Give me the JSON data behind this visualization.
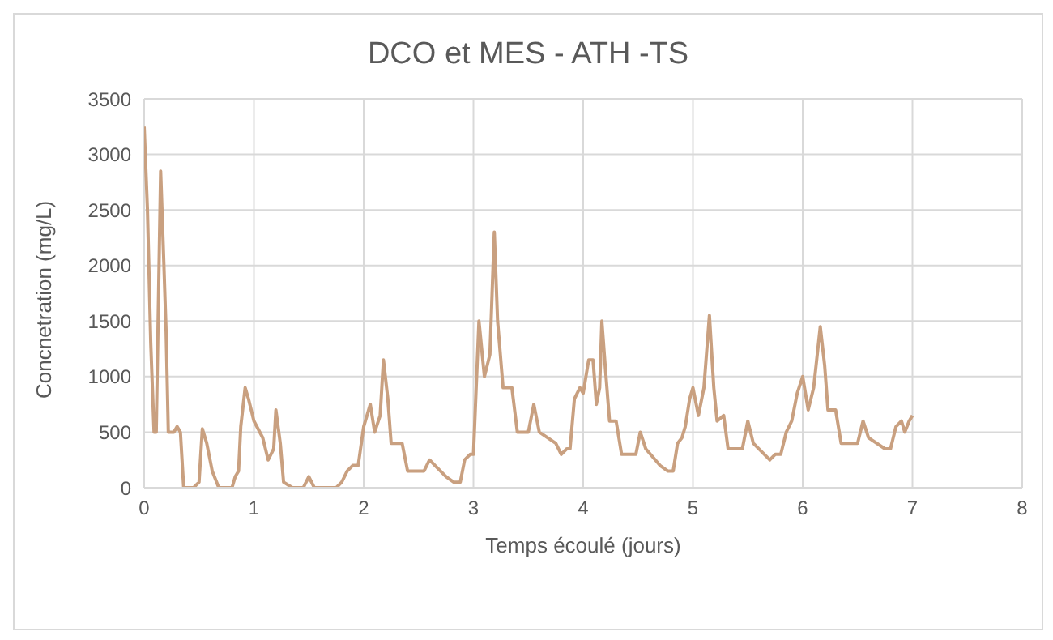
{
  "chart_data": {
    "type": "line",
    "title": "DCO et MES - ATH -TS",
    "xlabel": "Temps écoulé (jours)",
    "ylabel": "Concnetration (mg/L)",
    "x": [
      0,
      0.03,
      0.06,
      0.09,
      0.11,
      0.15,
      0.18,
      0.2,
      0.22,
      0.27,
      0.3,
      0.33,
      0.36,
      0.45,
      0.5,
      0.53,
      0.57,
      0.62,
      0.68,
      0.8,
      0.83,
      0.86,
      0.88,
      0.92,
      0.95,
      1.0,
      1.08,
      1.13,
      1.18,
      1.2,
      1.24,
      1.27,
      1.35,
      1.45,
      1.5,
      1.55,
      1.75,
      1.8,
      1.85,
      1.9,
      1.95,
      2.0,
      2.06,
      2.1,
      2.15,
      2.18,
      2.22,
      2.25,
      2.35,
      2.4,
      2.55,
      2.6,
      2.65,
      2.75,
      2.82,
      2.88,
      2.92,
      2.97,
      3.0,
      3.05,
      3.1,
      3.15,
      3.19,
      3.22,
      3.27,
      3.35,
      3.4,
      3.5,
      3.55,
      3.6,
      3.75,
      3.8,
      3.85,
      3.88,
      3.92,
      3.97,
      4.0,
      4.05,
      4.09,
      4.12,
      4.15,
      4.17,
      4.2,
      4.24,
      4.3,
      4.35,
      4.48,
      4.52,
      4.57,
      4.7,
      4.77,
      4.82,
      4.86,
      4.9,
      4.93,
      4.97,
      5.0,
      5.05,
      5.1,
      5.15,
      5.19,
      5.22,
      5.28,
      5.32,
      5.45,
      5.5,
      5.55,
      5.7,
      5.75,
      5.8,
      5.85,
      5.9,
      5.95,
      6.0,
      6.05,
      6.1,
      6.16,
      6.2,
      6.23,
      6.3,
      6.35,
      6.5,
      6.55,
      6.6,
      6.75,
      6.8,
      6.85,
      6.9,
      6.93,
      6.97,
      7.0
    ],
    "series": [
      {
        "color": "#c9a080",
        "values": [
          3250,
          2500,
          1300,
          500,
          500,
          2850,
          2000,
          1400,
          500,
          500,
          550,
          500,
          0,
          0,
          50,
          530,
          400,
          150,
          0,
          0,
          100,
          150,
          550,
          900,
          800,
          600,
          450,
          250,
          350,
          700,
          400,
          50,
          0,
          0,
          100,
          0,
          0,
          50,
          150,
          200,
          200,
          550,
          750,
          500,
          650,
          1150,
          800,
          400,
          400,
          150,
          150,
          250,
          200,
          100,
          50,
          50,
          250,
          300,
          300,
          1500,
          1000,
          1200,
          2300,
          1500,
          900,
          900,
          500,
          500,
          750,
          500,
          400,
          300,
          350,
          350,
          800,
          900,
          850,
          1150,
          1150,
          750,
          900,
          1500,
          1100,
          600,
          600,
          300,
          300,
          500,
          350,
          200,
          150,
          150,
          400,
          450,
          550,
          800,
          900,
          650,
          900,
          1550,
          900,
          600,
          650,
          350,
          350,
          600,
          400,
          250,
          300,
          300,
          500,
          600,
          850,
          1000,
          700,
          900,
          1450,
          1100,
          700,
          700,
          400,
          400,
          600,
          450,
          350,
          350,
          550,
          600,
          500,
          600,
          650
        ]
      }
    ],
    "xlim": [
      0,
      8
    ],
    "xticks": [
      0,
      1,
      2,
      3,
      4,
      5,
      6,
      7,
      8
    ],
    "ylim": [
      0,
      3500
    ],
    "yticks": [
      0,
      500,
      1000,
      1500,
      2000,
      2500,
      3000,
      3500
    ],
    "grid": true,
    "legend": false,
    "marker": "none",
    "line_style": "solid"
  }
}
